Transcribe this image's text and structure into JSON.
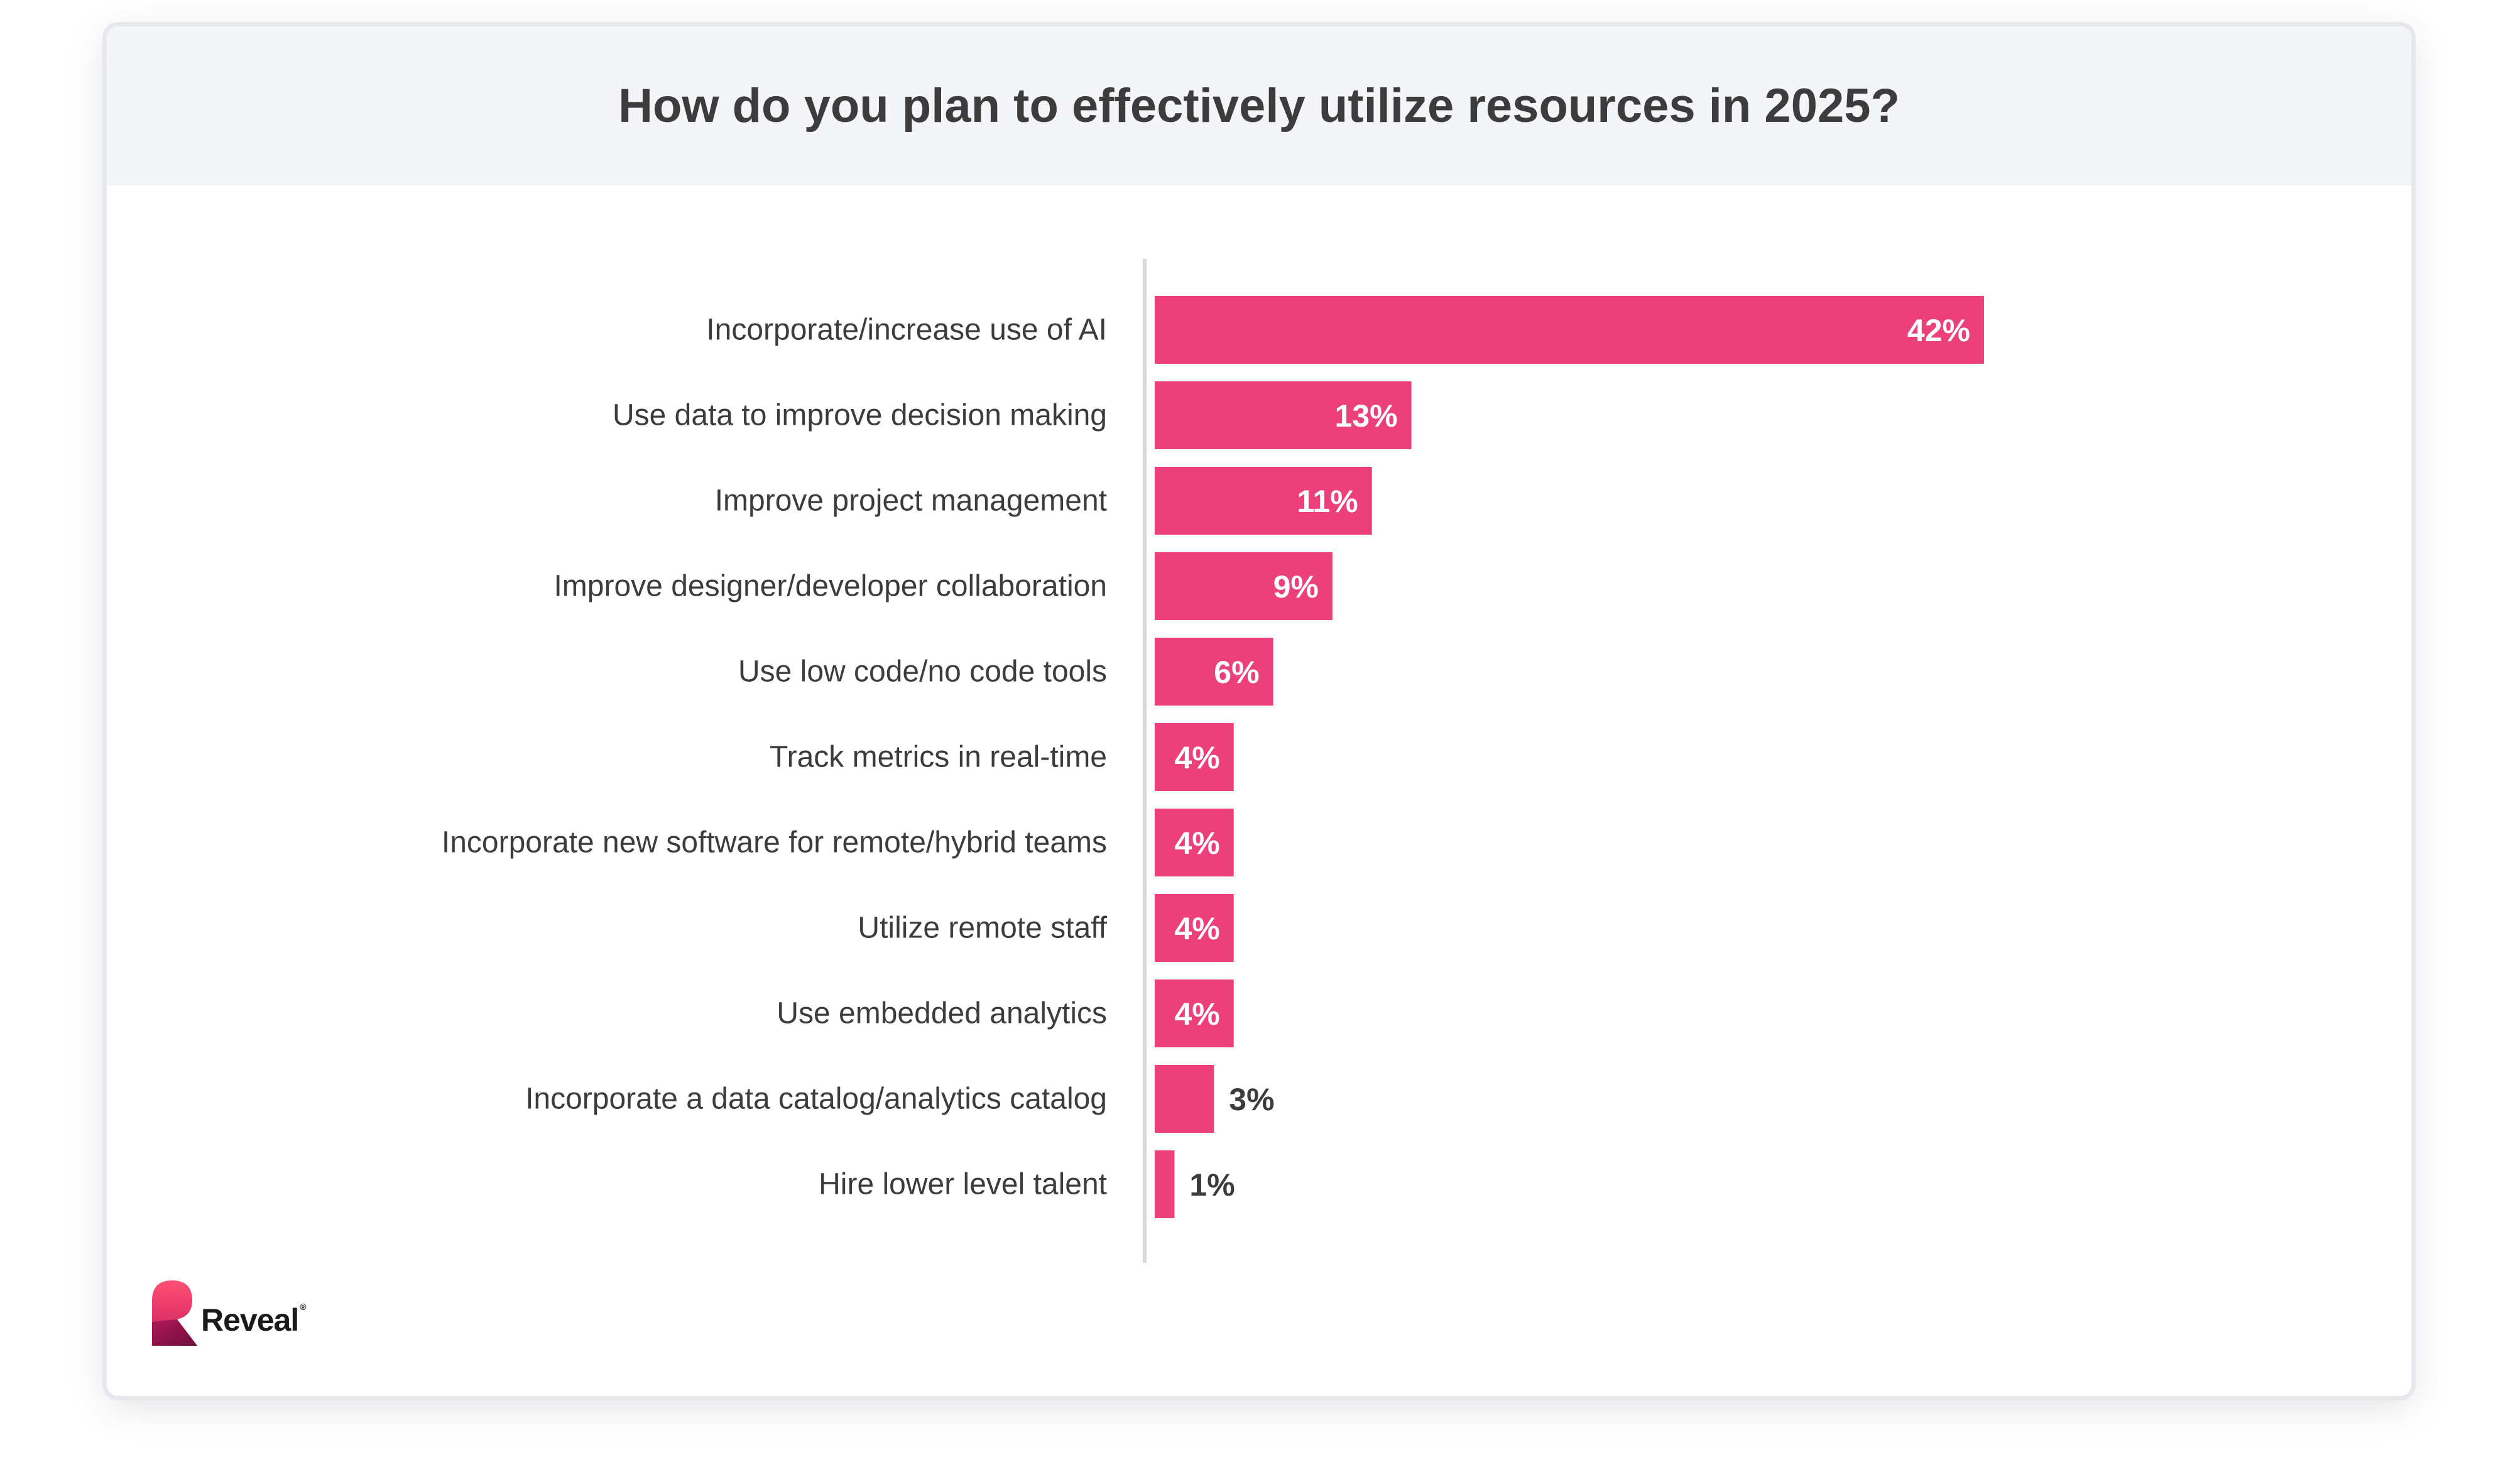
{
  "chart_data": {
    "type": "bar",
    "orientation": "horizontal",
    "title": "How do you plan to effectively utilize resources in 2025?",
    "categories": [
      "Incorporate/increase use of AI",
      "Use data to improve decision making",
      "Improve project management",
      "Improve designer/developer collaboration",
      "Use low code/no code tools",
      "Track metrics in real-time",
      "Incorporate new software for remote/hybrid teams",
      "Utilize remote staff",
      "Use embedded analytics",
      "Incorporate a data catalog/analytics catalog",
      "Hire lower level talent"
    ],
    "values": [
      42,
      13,
      11,
      9,
      6,
      4,
      4,
      4,
      4,
      3,
      1
    ],
    "labels": [
      "42%",
      "13%",
      "11%",
      "9%",
      "6%",
      "4%",
      "4%",
      "4%",
      "4%",
      "3%",
      "1%"
    ],
    "xlim": [
      0,
      42
    ],
    "xlabel": "",
    "ylabel": "",
    "bar_color": "#ec407a",
    "grid": false,
    "legend": "none"
  },
  "brand": {
    "name": "Reveal",
    "trademark": "®",
    "color_primary": "#f0386b",
    "color_dark": "#9c1450"
  },
  "colors": {
    "label_text": "#3c3c3c",
    "value_inside": "#ffffff",
    "value_outside": "#3c3c3c",
    "axis_line": "#d9d9d9"
  }
}
